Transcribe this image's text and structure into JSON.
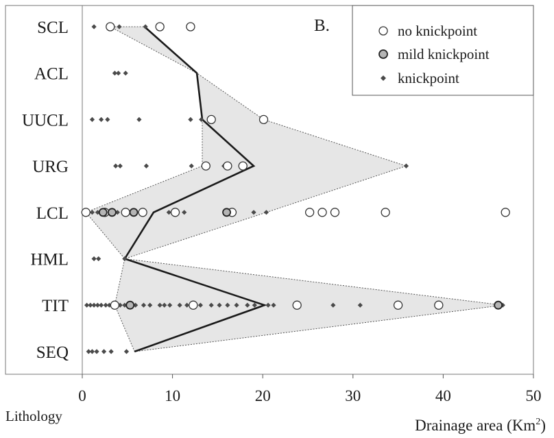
{
  "chart_data": {
    "type": "scatter",
    "panel_label": "B.",
    "xlabel": "Drainage area (Km",
    "xlabel_superscript": "2",
    "xlabel_close": ")",
    "ylabel": "Lithology",
    "xlim": [
      0,
      50
    ],
    "xticks": [
      "0",
      "10",
      "20",
      "30",
      "40",
      "50"
    ],
    "categories": [
      "SCL",
      "ACL",
      "UUCL",
      "URG",
      "LCL",
      "HML",
      "TIT",
      "SEQ"
    ],
    "legend": {
      "position": "top-right",
      "items": [
        {
          "label": "no knickpoint",
          "marker": "open-circle"
        },
        {
          "label": "mild knickpoint",
          "marker": "gray-circle"
        },
        {
          "label": "knickpoint",
          "marker": "diamond"
        }
      ]
    },
    "colors": {
      "diamond": "#4a4a4a",
      "mild_fill": "#b5b5b5",
      "envelope_fill": "#e6e6e6",
      "median_line": "#1a1a1a"
    },
    "series": [
      {
        "name": "no knickpoint",
        "points": [
          {
            "x": 3.1,
            "y": "SCL"
          },
          {
            "x": 8.6,
            "y": "SCL"
          },
          {
            "x": 12.0,
            "y": "SCL"
          },
          {
            "x": 14.3,
            "y": "UUCL"
          },
          {
            "x": 20.1,
            "y": "UUCL"
          },
          {
            "x": 13.7,
            "y": "URG"
          },
          {
            "x": 16.1,
            "y": "URG"
          },
          {
            "x": 17.8,
            "y": "URG"
          },
          {
            "x": 0.4,
            "y": "LCL"
          },
          {
            "x": 2.5,
            "y": "LCL"
          },
          {
            "x": 4.8,
            "y": "LCL"
          },
          {
            "x": 6.7,
            "y": "LCL"
          },
          {
            "x": 10.3,
            "y": "LCL"
          },
          {
            "x": 16.6,
            "y": "LCL"
          },
          {
            "x": 25.2,
            "y": "LCL"
          },
          {
            "x": 26.6,
            "y": "LCL"
          },
          {
            "x": 28.0,
            "y": "LCL"
          },
          {
            "x": 33.6,
            "y": "LCL"
          },
          {
            "x": 46.9,
            "y": "LCL"
          },
          {
            "x": 3.6,
            "y": "TIT"
          },
          {
            "x": 12.3,
            "y": "TIT"
          },
          {
            "x": 23.8,
            "y": "TIT"
          },
          {
            "x": 35.0,
            "y": "TIT"
          },
          {
            "x": 39.5,
            "y": "TIT"
          }
        ]
      },
      {
        "name": "mild knickpoint",
        "points": [
          {
            "x": 2.3,
            "y": "LCL"
          },
          {
            "x": 3.3,
            "y": "LCL"
          },
          {
            "x": 5.7,
            "y": "LCL"
          },
          {
            "x": 16.0,
            "y": "LCL"
          },
          {
            "x": 5.3,
            "y": "TIT"
          },
          {
            "x": 46.1,
            "y": "TIT"
          }
        ]
      },
      {
        "name": "knickpoint",
        "points": [
          {
            "x": 1.3,
            "y": "SCL"
          },
          {
            "x": 4.1,
            "y": "SCL"
          },
          {
            "x": 7.0,
            "y": "SCL"
          },
          {
            "x": 3.6,
            "y": "ACL"
          },
          {
            "x": 4.0,
            "y": "ACL"
          },
          {
            "x": 4.8,
            "y": "ACL"
          },
          {
            "x": 1.1,
            "y": "UUCL"
          },
          {
            "x": 2.1,
            "y": "UUCL"
          },
          {
            "x": 2.8,
            "y": "UUCL"
          },
          {
            "x": 6.3,
            "y": "UUCL"
          },
          {
            "x": 12.0,
            "y": "UUCL"
          },
          {
            "x": 13.2,
            "y": "UUCL"
          },
          {
            "x": 3.7,
            "y": "URG"
          },
          {
            "x": 4.2,
            "y": "URG"
          },
          {
            "x": 7.1,
            "y": "URG"
          },
          {
            "x": 12.1,
            "y": "URG"
          },
          {
            "x": 15.7,
            "y": "URG"
          },
          {
            "x": 35.9,
            "y": "URG"
          },
          {
            "x": 1.1,
            "y": "LCL"
          },
          {
            "x": 1.7,
            "y": "LCL"
          },
          {
            "x": 3.9,
            "y": "LCL"
          },
          {
            "x": 9.6,
            "y": "LCL"
          },
          {
            "x": 11.3,
            "y": "LCL"
          },
          {
            "x": 16.2,
            "y": "LCL"
          },
          {
            "x": 19.0,
            "y": "LCL"
          },
          {
            "x": 20.4,
            "y": "LCL"
          },
          {
            "x": 1.3,
            "y": "HML"
          },
          {
            "x": 1.8,
            "y": "HML"
          },
          {
            "x": 4.7,
            "y": "HML"
          },
          {
            "x": 0.5,
            "y": "TIT"
          },
          {
            "x": 0.9,
            "y": "TIT"
          },
          {
            "x": 1.3,
            "y": "TIT"
          },
          {
            "x": 1.7,
            "y": "TIT"
          },
          {
            "x": 2.1,
            "y": "TIT"
          },
          {
            "x": 2.6,
            "y": "TIT"
          },
          {
            "x": 3.0,
            "y": "TIT"
          },
          {
            "x": 4.2,
            "y": "TIT"
          },
          {
            "x": 4.7,
            "y": "TIT"
          },
          {
            "x": 5.9,
            "y": "TIT"
          },
          {
            "x": 6.8,
            "y": "TIT"
          },
          {
            "x": 7.5,
            "y": "TIT"
          },
          {
            "x": 8.6,
            "y": "TIT"
          },
          {
            "x": 9.1,
            "y": "TIT"
          },
          {
            "x": 9.7,
            "y": "TIT"
          },
          {
            "x": 10.8,
            "y": "TIT"
          },
          {
            "x": 11.6,
            "y": "TIT"
          },
          {
            "x": 13.1,
            "y": "TIT"
          },
          {
            "x": 14.3,
            "y": "TIT"
          },
          {
            "x": 15.2,
            "y": "TIT"
          },
          {
            "x": 16.1,
            "y": "TIT"
          },
          {
            "x": 17.1,
            "y": "TIT"
          },
          {
            "x": 18.3,
            "y": "TIT"
          },
          {
            "x": 19.1,
            "y": "TIT"
          },
          {
            "x": 20.6,
            "y": "TIT"
          },
          {
            "x": 21.2,
            "y": "TIT"
          },
          {
            "x": 27.8,
            "y": "TIT"
          },
          {
            "x": 30.8,
            "y": "TIT"
          },
          {
            "x": 46.6,
            "y": "TIT"
          },
          {
            "x": 0.7,
            "y": "SEQ"
          },
          {
            "x": 1.1,
            "y": "SEQ"
          },
          {
            "x": 1.6,
            "y": "SEQ"
          },
          {
            "x": 2.4,
            "y": "SEQ"
          },
          {
            "x": 3.2,
            "y": "SEQ"
          },
          {
            "x": 4.9,
            "y": "SEQ"
          }
        ]
      }
    ],
    "median_line": [
      {
        "x": 6.9,
        "y": "SCL"
      },
      {
        "x": 12.7,
        "y": "ACL"
      },
      {
        "x": 13.3,
        "y": "UUCL"
      },
      {
        "x": 19.0,
        "y": "URG"
      },
      {
        "x": 7.9,
        "y": "LCL"
      },
      {
        "x": 4.7,
        "y": "HML"
      },
      {
        "x": 20.2,
        "y": "TIT"
      },
      {
        "x": 5.8,
        "y": "SEQ"
      }
    ],
    "envelope": [
      {
        "x": 6.9,
        "y": "SCL"
      },
      {
        "x": 12.7,
        "y": "ACL"
      },
      {
        "x": 20.1,
        "y": "UUCL"
      },
      {
        "x": 35.9,
        "y": "URG"
      },
      {
        "x": 20.4,
        "y": "LCL"
      },
      {
        "x": 4.7,
        "y": "HML"
      },
      {
        "x": 46.6,
        "y": "TIT"
      },
      {
        "x": 5.8,
        "y": "SEQ"
      },
      {
        "x": 3.6,
        "y": "TIT"
      },
      {
        "x": 4.7,
        "y": "HML"
      },
      {
        "x": 0.4,
        "y": "LCL"
      },
      {
        "x": 13.3,
        "y": "URG"
      },
      {
        "x": 13.3,
        "y": "UUCL"
      },
      {
        "x": 12.7,
        "y": "ACL"
      },
      {
        "x": 3.1,
        "y": "SCL"
      }
    ]
  }
}
